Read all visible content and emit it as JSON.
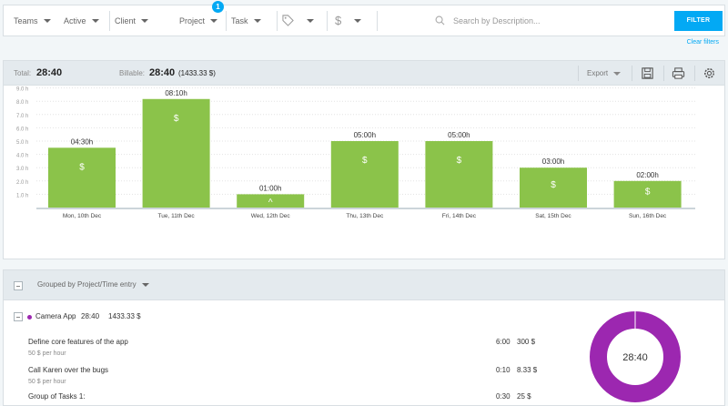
{
  "filters": {
    "teams": "Teams",
    "active": "Active",
    "client": "Client",
    "project": "Project",
    "project_badge": "1",
    "task": "Task",
    "search_placeholder": "Search by Description...",
    "filter_button": "FILTER",
    "clear_filters": "Clear filters"
  },
  "summary": {
    "total_label": "Total:",
    "total_value": "28:40",
    "billable_label": "Billable:",
    "billable_value": "28:40",
    "billable_amount": "(1433.33 $)",
    "export_label": "Export"
  },
  "chart_data": {
    "type": "bar",
    "categories": [
      "Mon, 10th Dec",
      "Tue, 11th Dec",
      "Wed, 12th Dec",
      "Thu, 13th Dec",
      "Fri, 14th Dec",
      "Sat, 15th Dec",
      "Sun, 16th Dec"
    ],
    "values": [
      4.5,
      8.1667,
      1.0,
      5.0,
      5.0,
      3.0,
      2.0
    ],
    "data_labels": [
      "04:30h",
      "08:10h",
      "01:00h",
      "05:00h",
      "05:00h",
      "03:00h",
      "02:00h"
    ],
    "y_ticks": [
      "1.0 h",
      "2.0 h",
      "3.0 h",
      "4.0 h",
      "5.0 h",
      "6.0 h",
      "7.0 h",
      "8.0 h",
      "9.0 h"
    ],
    "bar_symbol": "$",
    "ylim": [
      0,
      9
    ],
    "grid": true,
    "bar_color": "#8bc34a"
  },
  "grouped": {
    "group_by_label": "Grouped by Project/Time entry",
    "project": {
      "name": "Camera App",
      "time": "28:40",
      "amount": "1433.33 $",
      "color": "#9c27b0"
    },
    "entries": [
      {
        "description": "Define core features of the app",
        "rate": "50 $ per hour",
        "time": "6:00",
        "amount": "300 $"
      },
      {
        "description": "Call Karen over the bugs",
        "rate": "50 $ per hour",
        "time": "0:10",
        "amount": "8.33 $"
      },
      {
        "description": "Group of Tasks 1:",
        "rate": "",
        "time": "0:30",
        "amount": "25 $"
      }
    ],
    "donut_label": "28:40"
  }
}
